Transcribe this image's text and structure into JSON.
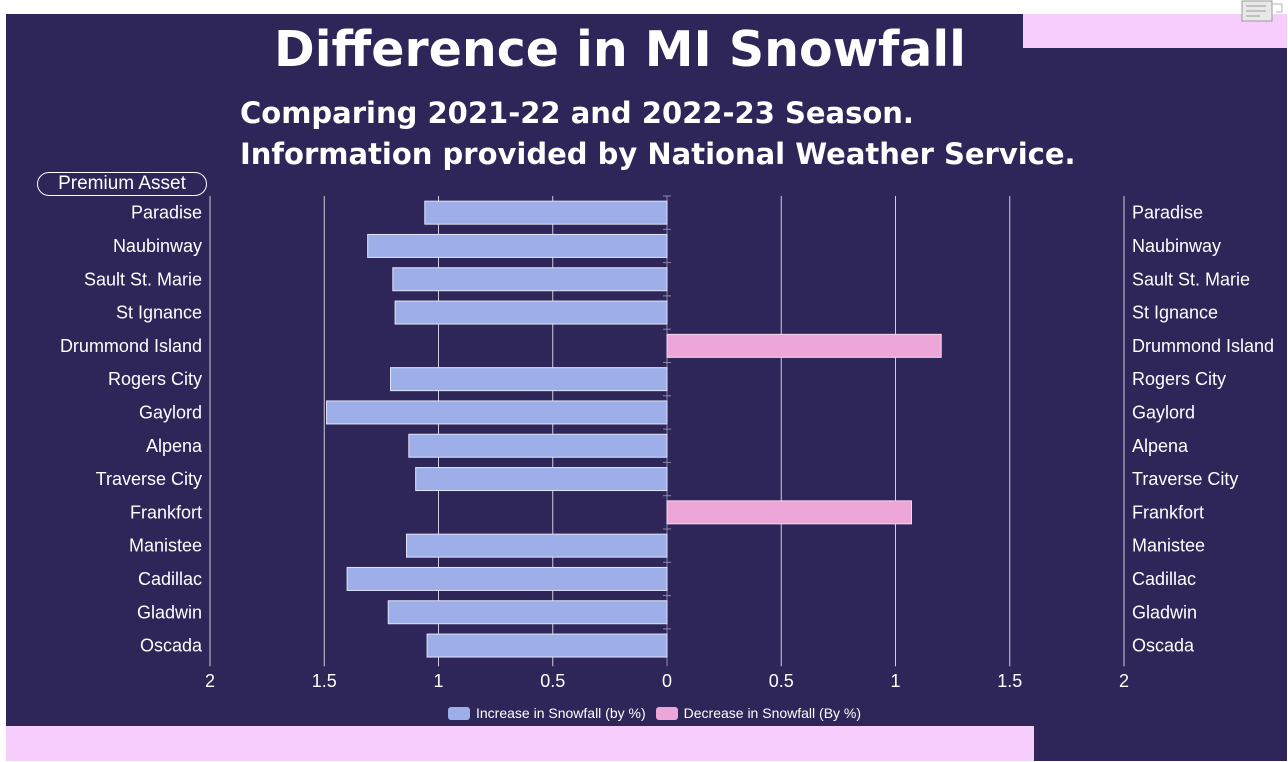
{
  "title": "Difference in MI Snowfall",
  "subtitle": "Comparing 2021-22 and 2022-23 Season. Information provided by National Weather Service.",
  "badge": "Premium Asset",
  "colors": {
    "background": "#2e2558",
    "accent_bar": "#f6cdfb",
    "increase": "#9eaee8",
    "decrease": "#eca6d8"
  },
  "chart_data": {
    "type": "bar",
    "orientation": "horizontal-butterfly",
    "categories": [
      "Paradise",
      "Naubinway",
      "Sault St. Marie",
      "St Ignance",
      "Drummond Island",
      "Rogers City",
      "Gaylord",
      "Alpena",
      "Traverse City",
      "Frankfort",
      "Manistee",
      "Cadillac",
      "Gladwin",
      "Oscada"
    ],
    "series": [
      {
        "name": "Increase in Snowfall (by %)",
        "side": "left",
        "values": [
          1.06,
          1.31,
          1.2,
          1.19,
          0,
          1.21,
          1.49,
          1.13,
          1.1,
          0,
          1.14,
          1.4,
          1.22,
          1.05
        ]
      },
      {
        "name": "Decrease in Snowfall (By %)",
        "side": "right",
        "values": [
          0,
          0,
          0,
          0,
          1.2,
          0,
          0,
          0,
          0,
          1.07,
          0,
          0,
          0,
          0
        ]
      }
    ],
    "xlim": [
      0,
      2
    ],
    "xticks": [
      2,
      1.5,
      1,
      0.5,
      0,
      0.5,
      1,
      1.5,
      2
    ],
    "grid": true,
    "legend": "bottom"
  }
}
